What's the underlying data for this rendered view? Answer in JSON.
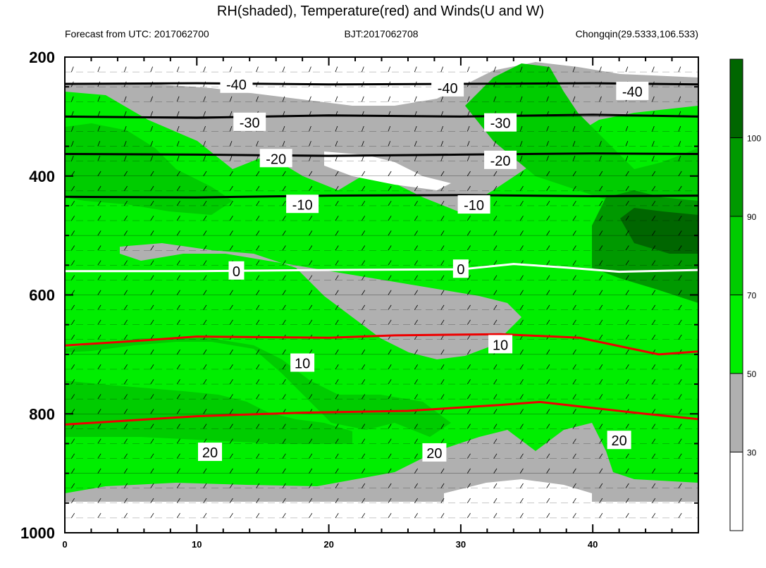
{
  "chart_data": {
    "type": "heatmap",
    "title": "RH(shaded), Temperature(red) and Winds(U and W)",
    "subtitle_left": "Forecast from UTC: 2017062700",
    "subtitle_center": "BJT:2017062708",
    "subtitle_right": "Chongqin(29.5333,106.533)",
    "xlabel": "",
    "ylabel": "",
    "x_ticks": [
      0,
      10,
      20,
      30,
      40
    ],
    "xlim": [
      0,
      48
    ],
    "y_ticks": [
      200,
      400,
      600,
      800,
      1000
    ],
    "ylim": [
      1000,
      200
    ],
    "colorbar": {
      "bins": [
        {
          "min": 0,
          "max": 30,
          "color": "#ffffff"
        },
        {
          "min": 30,
          "max": 50,
          "color": "#b0b0b0"
        },
        {
          "min": 50,
          "max": 70,
          "color": "#00ee00"
        },
        {
          "min": 70,
          "max": 90,
          "color": "#00cc00"
        },
        {
          "min": 90,
          "max": 100,
          "color": "#009900"
        },
        {
          "min": 100,
          "max": 110,
          "color": "#006600"
        }
      ],
      "tick_labels": [
        "30",
        "50",
        "70",
        "90",
        "100"
      ]
    },
    "temperature_contours": [
      {
        "value": -40,
        "color": "#000000",
        "points": [
          [
            0,
            245
          ],
          [
            10,
            244
          ],
          [
            20,
            246
          ],
          [
            30,
            245
          ],
          [
            40,
            244
          ],
          [
            48,
            246
          ]
        ]
      },
      {
        "value": -30,
        "color": "#000000",
        "points": [
          [
            0,
            300
          ],
          [
            10,
            302
          ],
          [
            20,
            298
          ],
          [
            30,
            300
          ],
          [
            40,
            297
          ],
          [
            48,
            300
          ]
        ]
      },
      {
        "value": -20,
        "color": "#000000",
        "points": [
          [
            0,
            363
          ],
          [
            10,
            364
          ],
          [
            20,
            366
          ],
          [
            30,
            364
          ],
          [
            40,
            362
          ],
          [
            48,
            363
          ]
        ]
      },
      {
        "value": -10,
        "color": "#000000",
        "points": [
          [
            0,
            435
          ],
          [
            10,
            436
          ],
          [
            20,
            433
          ],
          [
            30,
            432
          ],
          [
            40,
            434
          ],
          [
            48,
            433
          ]
        ]
      },
      {
        "value": 0,
        "color": "#ffffff",
        "points": [
          [
            0,
            560
          ],
          [
            10,
            560
          ],
          [
            20,
            558
          ],
          [
            30,
            557
          ],
          [
            34,
            548
          ],
          [
            38,
            554
          ],
          [
            42,
            561
          ],
          [
            48,
            558
          ]
        ]
      },
      {
        "value": 10,
        "color": "#ee0000",
        "points": [
          [
            0,
            685
          ],
          [
            5,
            678
          ],
          [
            10,
            670
          ],
          [
            20,
            672
          ],
          [
            25,
            668
          ],
          [
            33,
            666
          ],
          [
            39,
            672
          ],
          [
            45,
            700
          ],
          [
            48,
            695
          ]
        ]
      },
      {
        "value": 20,
        "color": "#ee0000",
        "points": [
          [
            0,
            818
          ],
          [
            10,
            804
          ],
          [
            18,
            798
          ],
          [
            26,
            795
          ],
          [
            33,
            785
          ],
          [
            36,
            780
          ],
          [
            44,
            800
          ],
          [
            48,
            809
          ]
        ]
      }
    ],
    "contour_labels": [
      {
        "text": "-40",
        "x": 13,
        "y": 246
      },
      {
        "text": "-40",
        "x": 29,
        "y": 252
      },
      {
        "text": "-40",
        "x": 43,
        "y": 258
      },
      {
        "text": "-30",
        "x": 14,
        "y": 310
      },
      {
        "text": "-30",
        "x": 33,
        "y": 311
      },
      {
        "text": "-20",
        "x": 16,
        "y": 371
      },
      {
        "text": "-20",
        "x": 33,
        "y": 374
      },
      {
        "text": "-10",
        "x": 18,
        "y": 448
      },
      {
        "text": "-10",
        "x": 31,
        "y": 449
      },
      {
        "text": "0",
        "x": 13,
        "y": 560
      },
      {
        "text": "0",
        "x": 30,
        "y": 557
      },
      {
        "text": "10",
        "x": 18,
        "y": 715
      },
      {
        "text": "10",
        "x": 33,
        "y": 684
      },
      {
        "text": "20",
        "x": 11,
        "y": 865
      },
      {
        "text": "20",
        "x": 28,
        "y": 866
      },
      {
        "text": "20",
        "x": 42,
        "y": 845
      }
    ]
  }
}
